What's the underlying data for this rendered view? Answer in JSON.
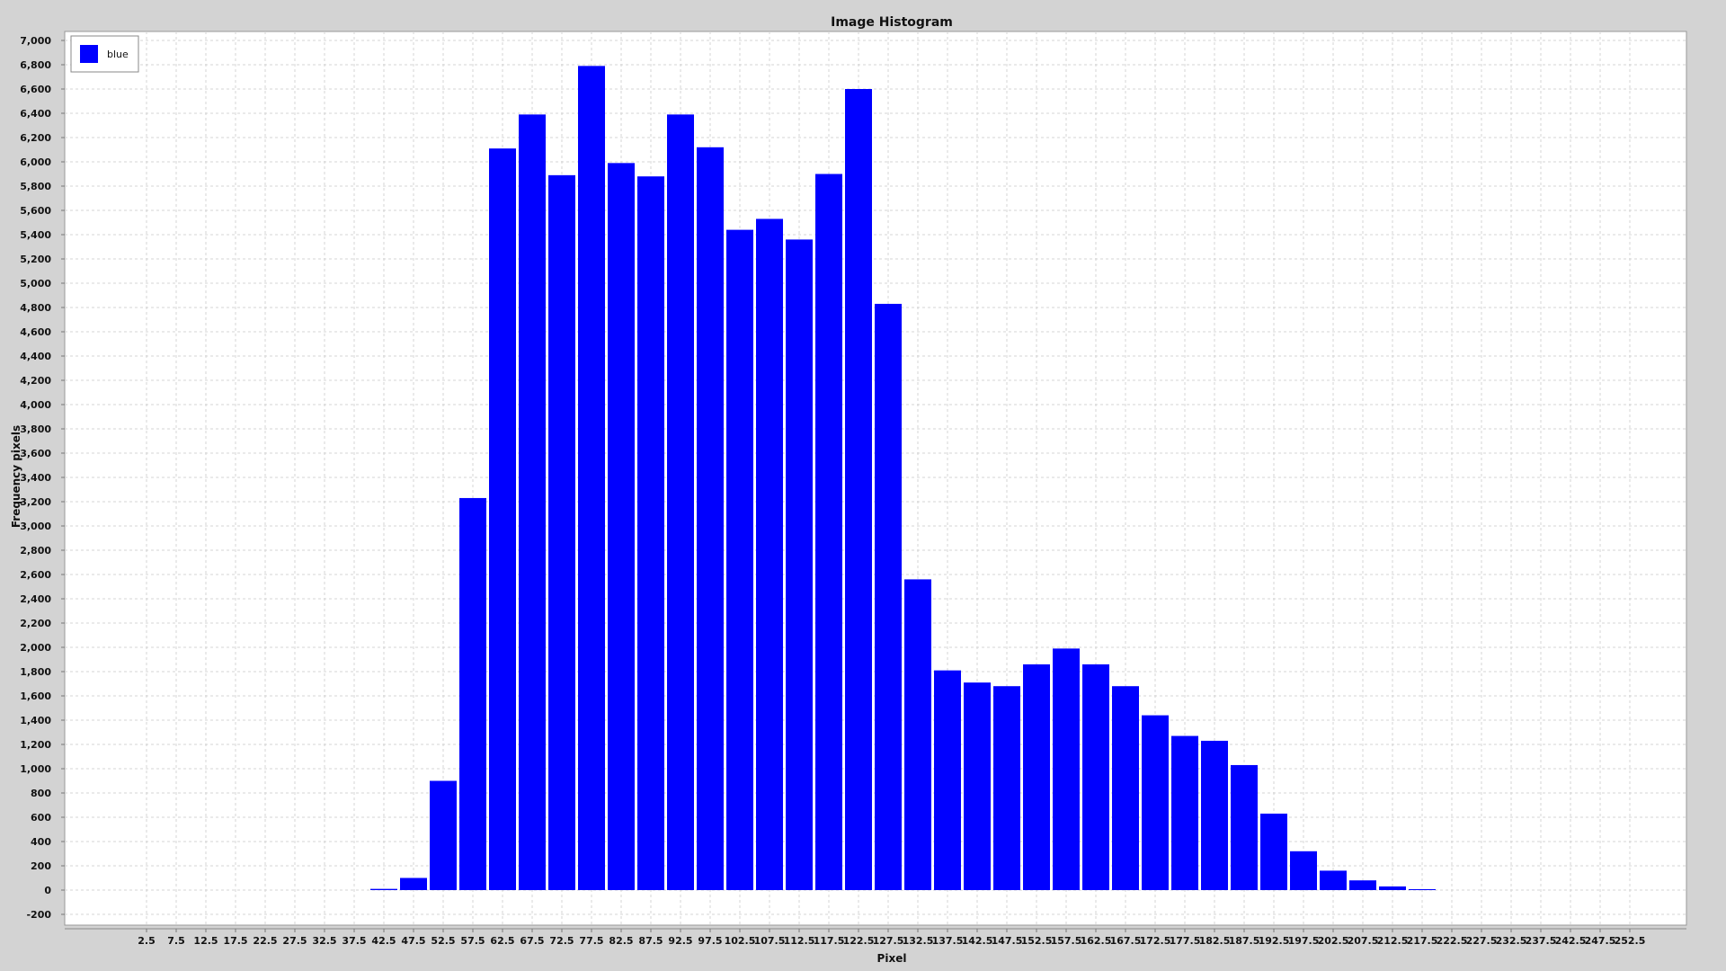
{
  "chart_data": {
    "type": "bar",
    "title": "Image Histogram",
    "xlabel": "Pixel",
    "ylabel": "Frequency pixels",
    "ylim": [
      -200,
      7000
    ],
    "ytick_step": 200,
    "xlim": [
      0,
      255
    ],
    "bin_width": 5,
    "grid": true,
    "legend_position": "top-left",
    "x_tick_labels": [
      "2.5",
      "7.5",
      "12.5",
      "17.5",
      "22.5",
      "27.5",
      "32.5",
      "37.5",
      "42.5",
      "47.5",
      "52.5",
      "57.5",
      "62.5",
      "67.5",
      "72.5",
      "77.5",
      "82.5",
      "87.5",
      "92.5",
      "97.5",
      "102.5",
      "107.5",
      "112.5",
      "117.5",
      "122.5",
      "127.5",
      "132.5",
      "137.5",
      "142.5",
      "147.5",
      "152.5",
      "157.5",
      "162.5",
      "167.5",
      "172.5",
      "177.5",
      "182.5",
      "187.5",
      "192.5",
      "197.5",
      "202.5",
      "207.5",
      "212.5",
      "217.5",
      "222.5",
      "227.5",
      "232.5",
      "237.5",
      "242.5",
      "247.5",
      "252.5"
    ],
    "y_tick_labels": [
      "-200",
      "0",
      "200",
      "400",
      "600",
      "800",
      "1,000",
      "1,200",
      "1,400",
      "1,600",
      "1,800",
      "2,000",
      "2,200",
      "2,400",
      "2,600",
      "2,800",
      "3,000",
      "3,200",
      "3,400",
      "3,600",
      "3,800",
      "4,000",
      "4,200",
      "4,400",
      "4,600",
      "4,800",
      "5,000",
      "5,200",
      "5,400",
      "5,600",
      "5,800",
      "6,000",
      "6,200",
      "6,400",
      "6,600",
      "6,800",
      "7,000"
    ],
    "series": [
      {
        "name": "blue",
        "color": "#0000ff",
        "x": [
          2.5,
          7.5,
          12.5,
          17.5,
          22.5,
          27.5,
          32.5,
          37.5,
          42.5,
          47.5,
          52.5,
          57.5,
          62.5,
          67.5,
          72.5,
          77.5,
          82.5,
          87.5,
          92.5,
          97.5,
          102.5,
          107.5,
          112.5,
          117.5,
          122.5,
          127.5,
          132.5,
          137.5,
          142.5,
          147.5,
          152.5,
          157.5,
          162.5,
          167.5,
          172.5,
          177.5,
          182.5,
          187.5,
          192.5,
          197.5,
          202.5,
          207.5,
          212.5,
          217.5,
          222.5,
          227.5,
          232.5,
          237.5,
          242.5,
          247.5,
          252.5
        ],
        "values": [
          0,
          0,
          0,
          0,
          0,
          0,
          0,
          0,
          10,
          100,
          900,
          3230,
          6110,
          6390,
          5890,
          6790,
          5990,
          5880,
          6390,
          6120,
          5440,
          5530,
          5360,
          5900,
          6600,
          4830,
          2560,
          1810,
          1710,
          1680,
          1860,
          1990,
          1860,
          1680,
          1440,
          1270,
          1230,
          1030,
          630,
          320,
          160,
          80,
          30,
          5,
          0,
          0,
          0,
          0,
          0,
          0,
          0
        ]
      }
    ]
  }
}
